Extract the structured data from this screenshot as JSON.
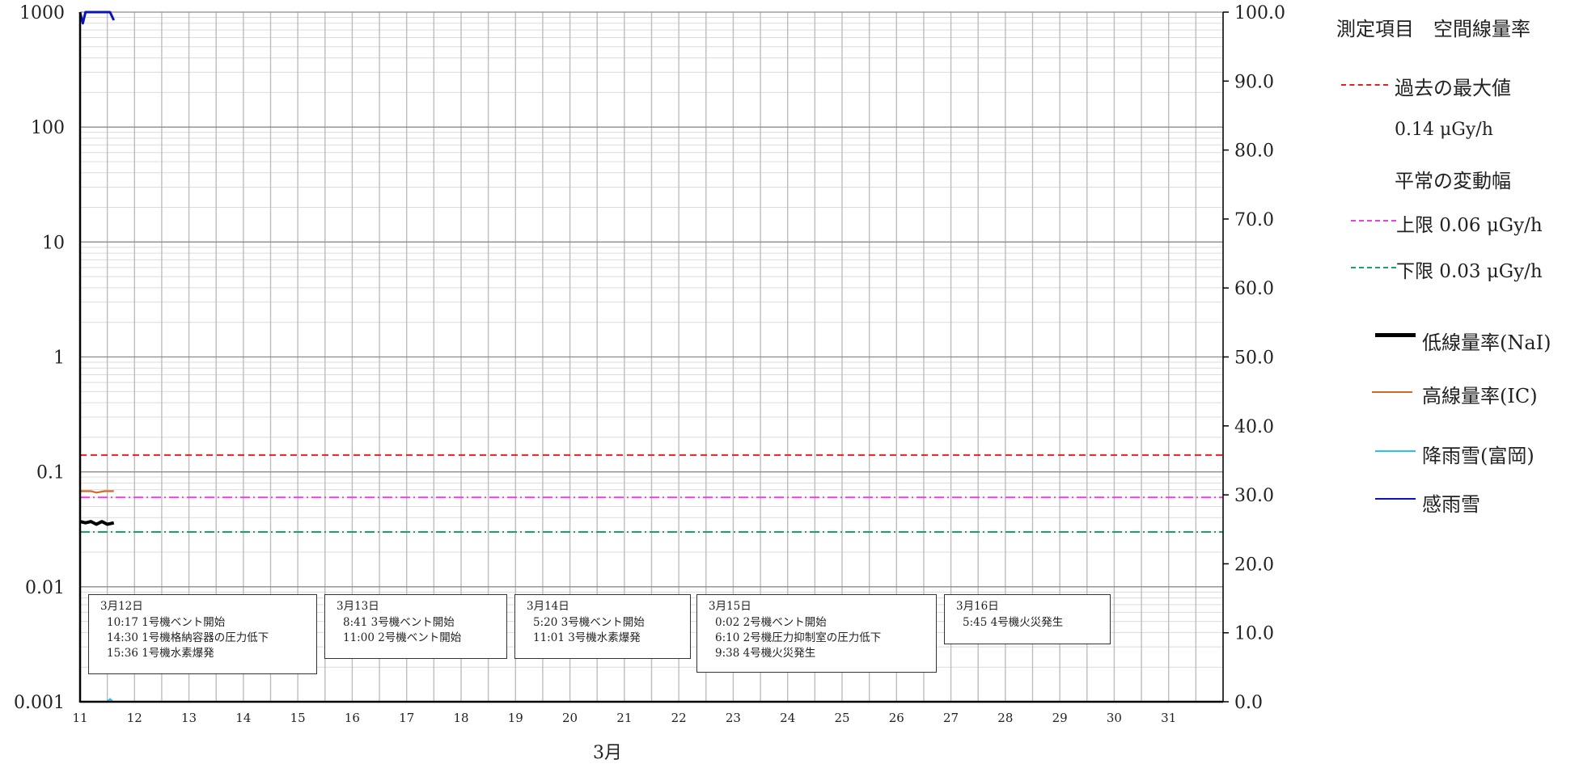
{
  "chart_data": {
    "type": "line",
    "xlabel": "3月",
    "x_ticks": [
      "11",
      "12",
      "13",
      "14",
      "15",
      "16",
      "17",
      "18",
      "19",
      "20",
      "21",
      "22",
      "23",
      "24",
      "25",
      "26",
      "27",
      "28",
      "29",
      "30",
      "31"
    ],
    "x_range": [
      11,
      32
    ],
    "y_left": {
      "scale": "log",
      "range": [
        0.001,
        1000
      ],
      "ticks": [
        "1000",
        "100",
        "10",
        "1",
        "0.1",
        "0.01",
        "0.001"
      ]
    },
    "y_right": {
      "scale": "linear",
      "range": [
        0,
        100
      ],
      "ticks": [
        "100.0",
        "90.0",
        "80.0",
        "70.0",
        "60.0",
        "50.0",
        "40.0",
        "30.0",
        "20.0",
        "10.0",
        "0.0"
      ]
    },
    "grid": true,
    "reference_lines": [
      {
        "name": "過去の最大値",
        "value": 0.14,
        "color": "#e8201c",
        "style": "dashed"
      },
      {
        "name": "上限",
        "value": 0.06,
        "color": "#e542e0",
        "style": "dashdot"
      },
      {
        "name": "下限",
        "value": 0.03,
        "color": "#1aa368",
        "style": "dashdot"
      }
    ],
    "series": [
      {
        "name": "低線量率(NaI)",
        "color": "#000000",
        "axis": "left",
        "x": [
          11.0,
          11.1,
          11.2,
          11.3,
          11.4,
          11.5,
          11.62
        ],
        "y": [
          0.037,
          0.036,
          0.037,
          0.035,
          0.037,
          0.035,
          0.036
        ]
      },
      {
        "name": "高線量率(IC)",
        "color": "#d2692a",
        "axis": "left",
        "x": [
          11.0,
          11.2,
          11.3,
          11.45,
          11.62
        ],
        "y": [
          0.068,
          0.068,
          0.066,
          0.068,
          0.068
        ]
      },
      {
        "name": "降雨雪(富岡)",
        "color": "#27c3ee",
        "axis": "right",
        "x": [
          11.0,
          11.5,
          11.55,
          11.6,
          11.62
        ],
        "y": [
          0.0,
          0.0,
          0.4,
          0.0,
          0.0
        ]
      },
      {
        "name": "感雨雪",
        "color": "#0b14b8",
        "axis": "left",
        "x": [
          11.0,
          11.05,
          11.1,
          11.2,
          11.55,
          11.62
        ],
        "y": [
          1000,
          800,
          1000,
          1000,
          1000,
          850
        ]
      }
    ]
  },
  "legend": {
    "header": "測定項目　空間線量率",
    "past_max_label": "過去の最大値",
    "past_max_value": "0.14 μGy/h",
    "normal_range_label": "平常の変動幅",
    "upper_label": "上限 0.06 μGy/h",
    "lower_label": "下限 0.03 μGy/h",
    "nai_label": "低線量率(NaI)",
    "ic_label": "高線量率(IC)",
    "rain_label": "降雨雪(富岡)",
    "sense_label": "感雨雪"
  },
  "notes": [
    {
      "date": "3月12日",
      "events": [
        "10:17 1号機ベント開始",
        "14:30 1号機格納容器の圧力低下",
        "15:36 1号機水素爆発"
      ]
    },
    {
      "date": "3月13日",
      "events": [
        "8:41 3号機ベント開始",
        "11:00 2号機ベント開始"
      ]
    },
    {
      "date": "3月14日",
      "events": [
        "5:20 3号機ベント開始",
        "11:01 3号機水素爆発"
      ]
    },
    {
      "date": "3月15日",
      "events": [
        "0:02 2号機ベント開始",
        "6:10 2号機圧力抑制室の圧力低下",
        "9:38 4号機火災発生"
      ]
    },
    {
      "date": "3月16日",
      "events": [
        "5:45 4号機火災発生"
      ]
    }
  ]
}
